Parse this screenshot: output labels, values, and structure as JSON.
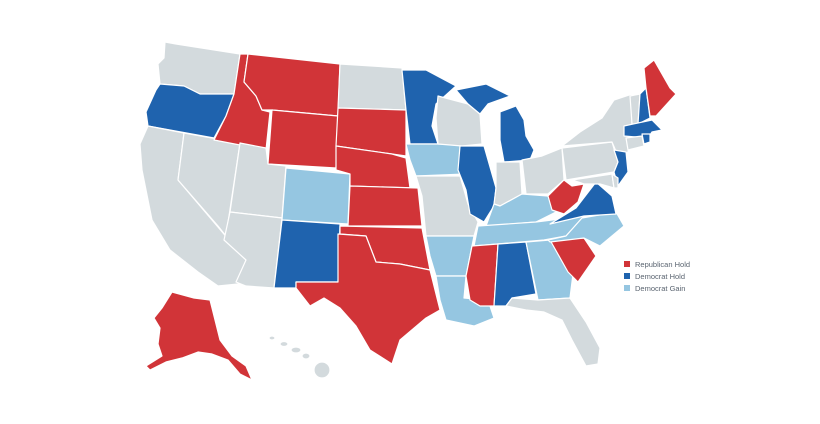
{
  "colors": {
    "republican_hold": "#d13438",
    "democrat_hold": "#1f63ae",
    "democrat_gain": "#95c6e1",
    "no_change": "#d3dadd"
  },
  "legend": [
    {
      "label": "Republican Hold",
      "key": "republican_hold"
    },
    {
      "label": "Democrat Hold",
      "key": "democrat_hold"
    },
    {
      "label": "Democrat Gain",
      "key": "democrat_gain"
    }
  ],
  "states": {
    "WA": "no_change",
    "OR": "democrat_hold",
    "CA": "no_change",
    "NV": "no_change",
    "ID": "republican_hold",
    "MT": "republican_hold",
    "WY": "republican_hold",
    "UT": "no_change",
    "AZ": "no_change",
    "CO": "democrat_gain",
    "NM": "democrat_hold",
    "ND": "no_change",
    "SD": "republican_hold",
    "NE": "republican_hold",
    "KS": "republican_hold",
    "OK": "republican_hold",
    "TX": "republican_hold",
    "MN": "democrat_hold",
    "IA": "democrat_gain",
    "MO": "no_change",
    "AR": "democrat_gain",
    "LA": "democrat_gain",
    "WI": "no_change",
    "IL": "democrat_hold",
    "MI": "democrat_hold",
    "IN": "no_change",
    "OH": "no_change",
    "KY": "democrat_gain",
    "TN": "democrat_gain",
    "MS": "republican_hold",
    "AL": "democrat_hold",
    "GA": "democrat_gain",
    "FL": "no_change",
    "SC": "republican_hold",
    "NC": "democrat_gain",
    "VA": "democrat_hold",
    "WV": "republican_hold",
    "PA": "no_change",
    "NY": "no_change",
    "NJ": "democrat_hold",
    "MD": "no_change",
    "DE": "no_change",
    "CT": "no_change",
    "RI": "democrat_hold",
    "MA": "democrat_hold",
    "VT": "no_change",
    "NH": "democrat_hold",
    "ME": "republican_hold",
    "AK": "republican_hold",
    "HI": "no_change"
  }
}
